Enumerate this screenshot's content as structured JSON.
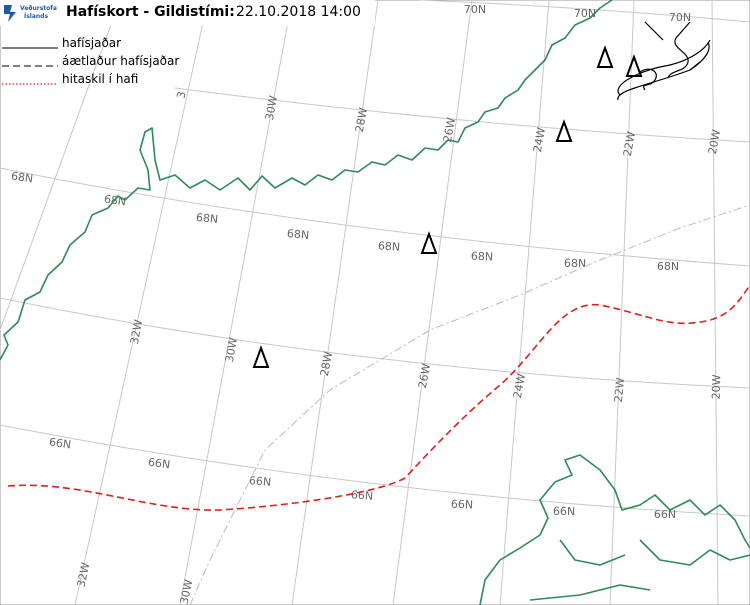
{
  "header": {
    "logo_text": [
      "Veðurstofa",
      "Íslands"
    ],
    "title": "Hafískort - Gildistími:",
    "valid_time": "22.10.2018 14:00"
  },
  "legend": [
    {
      "label": "hafísjaðar"
    },
    {
      "label": "áætlaður hafísjaðar"
    },
    {
      "label": "hitaskil í hafi"
    }
  ],
  "grid_labels": [
    "70N",
    "70N",
    "70N",
    "3",
    "30W",
    "28W",
    "26W",
    "24W",
    "22W",
    "20W",
    "68N",
    "68N",
    "68N",
    "68N",
    "68N",
    "68N",
    "68N",
    "68N",
    "32W",
    "30W",
    "28W",
    "26W",
    "24W",
    "22W",
    "20W",
    "66N",
    "66N",
    "66N",
    "66N",
    "66N",
    "66N",
    "66N",
    "32W",
    "30W"
  ]
}
